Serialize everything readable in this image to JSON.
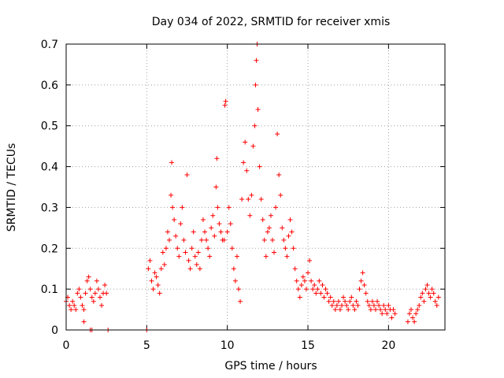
{
  "chart_data": {
    "type": "scatter",
    "title": "Day 034 of 2022, SRMTID for receiver xmis",
    "xlabel": "GPS time / hours",
    "ylabel": "SRMTID / TECUs",
    "xlim": [
      0,
      23.5
    ],
    "ylim": [
      0,
      0.7
    ],
    "xticks": [
      0,
      5,
      10,
      15,
      20
    ],
    "xtick_labels": [
      "0",
      "5",
      "10",
      "15",
      "20"
    ],
    "yticks": [
      0,
      0.1,
      0.2,
      0.3,
      0.4,
      0.5,
      0.6,
      0.7
    ],
    "ytick_labels": [
      "0",
      "0.1",
      "0.2",
      "0.3",
      "0.4",
      "0.5",
      "0.6",
      "0.7"
    ],
    "grid": true,
    "marker": "+",
    "color": "#ff0000",
    "series": [
      {
        "name": "SRMTID",
        "points": [
          [
            0.0,
            0.07
          ],
          [
            0.1,
            0.08
          ],
          [
            0.2,
            0.06
          ],
          [
            0.3,
            0.05
          ],
          [
            0.4,
            0.07
          ],
          [
            0.5,
            0.06
          ],
          [
            0.6,
            0.05
          ],
          [
            0.7,
            0.09
          ],
          [
            0.8,
            0.1
          ],
          [
            0.9,
            0.08
          ],
          [
            1.0,
            0.06
          ],
          [
            1.1,
            0.05
          ],
          [
            1.2,
            0.09
          ],
          [
            1.3,
            0.12
          ],
          [
            1.4,
            0.13
          ],
          [
            1.5,
            0.1
          ],
          [
            1.6,
            0.08
          ],
          [
            1.7,
            0.07
          ],
          [
            1.8,
            0.09
          ],
          [
            1.9,
            0.12
          ],
          [
            2.0,
            0.1
          ],
          [
            2.1,
            0.08
          ],
          [
            2.2,
            0.06
          ],
          [
            2.3,
            0.09
          ],
          [
            2.4,
            0.11
          ],
          [
            2.5,
            0.09
          ],
          [
            1.1,
            0.02
          ],
          [
            1.5,
            0.0
          ],
          [
            1.6,
            0.0
          ],
          [
            2.6,
            0.0
          ],
          [
            5.0,
            0.0
          ],
          [
            5.1,
            0.15
          ],
          [
            5.2,
            0.17
          ],
          [
            5.3,
            0.12
          ],
          [
            5.4,
            0.1
          ],
          [
            5.5,
            0.14
          ],
          [
            5.6,
            0.13
          ],
          [
            5.7,
            0.11
          ],
          [
            5.8,
            0.09
          ],
          [
            5.9,
            0.15
          ],
          [
            6.0,
            0.19
          ],
          [
            6.1,
            0.16
          ],
          [
            6.2,
            0.2
          ],
          [
            6.3,
            0.24
          ],
          [
            6.4,
            0.22
          ],
          [
            6.5,
            0.33
          ],
          [
            6.55,
            0.41
          ],
          [
            6.6,
            0.3
          ],
          [
            6.7,
            0.27
          ],
          [
            6.8,
            0.23
          ],
          [
            6.9,
            0.2
          ],
          [
            7.0,
            0.18
          ],
          [
            7.1,
            0.26
          ],
          [
            7.2,
            0.3
          ],
          [
            7.3,
            0.22
          ],
          [
            7.4,
            0.19
          ],
          [
            7.5,
            0.38
          ],
          [
            7.6,
            0.17
          ],
          [
            7.7,
            0.15
          ],
          [
            7.8,
            0.2
          ],
          [
            7.9,
            0.24
          ],
          [
            8.0,
            0.18
          ],
          [
            8.1,
            0.16
          ],
          [
            8.2,
            0.19
          ],
          [
            8.3,
            0.15
          ],
          [
            8.4,
            0.22
          ],
          [
            8.5,
            0.27
          ],
          [
            8.6,
            0.24
          ],
          [
            8.7,
            0.22
          ],
          [
            8.8,
            0.2
          ],
          [
            8.9,
            0.18
          ],
          [
            9.0,
            0.25
          ],
          [
            9.1,
            0.28
          ],
          [
            9.2,
            0.23
          ],
          [
            9.3,
            0.35
          ],
          [
            9.35,
            0.42
          ],
          [
            9.4,
            0.3
          ],
          [
            9.5,
            0.26
          ],
          [
            9.6,
            0.24
          ],
          [
            9.7,
            0.22
          ],
          [
            9.8,
            0.22
          ],
          [
            9.85,
            0.55
          ],
          [
            9.9,
            0.56
          ],
          [
            10.0,
            0.24
          ],
          [
            10.1,
            0.3
          ],
          [
            10.2,
            0.26
          ],
          [
            10.3,
            0.2
          ],
          [
            10.4,
            0.15
          ],
          [
            10.5,
            0.12
          ],
          [
            10.6,
            0.18
          ],
          [
            10.7,
            0.1
          ],
          [
            10.8,
            0.07
          ],
          [
            10.9,
            0.32
          ],
          [
            11.0,
            0.41
          ],
          [
            11.1,
            0.46
          ],
          [
            11.2,
            0.39
          ],
          [
            11.3,
            0.32
          ],
          [
            11.4,
            0.28
          ],
          [
            11.5,
            0.33
          ],
          [
            11.6,
            0.45
          ],
          [
            11.7,
            0.5
          ],
          [
            11.75,
            0.6
          ],
          [
            11.8,
            0.66
          ],
          [
            11.85,
            0.7
          ],
          [
            11.9,
            0.54
          ],
          [
            12.0,
            0.4
          ],
          [
            12.1,
            0.32
          ],
          [
            12.2,
            0.27
          ],
          [
            12.3,
            0.22
          ],
          [
            12.4,
            0.18
          ],
          [
            12.5,
            0.24
          ],
          [
            12.6,
            0.25
          ],
          [
            12.7,
            0.28
          ],
          [
            12.8,
            0.22
          ],
          [
            12.9,
            0.19
          ],
          [
            13.0,
            0.3
          ],
          [
            13.1,
            0.48
          ],
          [
            13.2,
            0.38
          ],
          [
            13.3,
            0.33
          ],
          [
            13.4,
            0.25
          ],
          [
            13.5,
            0.22
          ],
          [
            13.6,
            0.2
          ],
          [
            13.7,
            0.18
          ],
          [
            13.8,
            0.23
          ],
          [
            13.9,
            0.27
          ],
          [
            14.0,
            0.24
          ],
          [
            14.1,
            0.2
          ],
          [
            14.2,
            0.15
          ],
          [
            14.3,
            0.12
          ],
          [
            14.4,
            0.1
          ],
          [
            14.5,
            0.08
          ],
          [
            14.6,
            0.11
          ],
          [
            14.7,
            0.13
          ],
          [
            14.8,
            0.12
          ],
          [
            14.9,
            0.1
          ],
          [
            15.0,
            0.14
          ],
          [
            15.1,
            0.17
          ],
          [
            15.2,
            0.12
          ],
          [
            15.3,
            0.1
          ],
          [
            15.4,
            0.11
          ],
          [
            15.5,
            0.09
          ],
          [
            15.6,
            0.1
          ],
          [
            15.7,
            0.12
          ],
          [
            15.8,
            0.09
          ],
          [
            15.9,
            0.11
          ],
          [
            16.0,
            0.08
          ],
          [
            16.1,
            0.1
          ],
          [
            16.2,
            0.09
          ],
          [
            16.3,
            0.07
          ],
          [
            16.4,
            0.08
          ],
          [
            16.5,
            0.06
          ],
          [
            16.6,
            0.07
          ],
          [
            16.7,
            0.05
          ],
          [
            16.8,
            0.06
          ],
          [
            16.9,
            0.07
          ],
          [
            17.0,
            0.05
          ],
          [
            17.1,
            0.06
          ],
          [
            17.2,
            0.08
          ],
          [
            17.3,
            0.07
          ],
          [
            17.4,
            0.06
          ],
          [
            17.5,
            0.05
          ],
          [
            17.6,
            0.07
          ],
          [
            17.7,
            0.08
          ],
          [
            17.8,
            0.06
          ],
          [
            17.9,
            0.05
          ],
          [
            18.0,
            0.07
          ],
          [
            18.1,
            0.06
          ],
          [
            18.2,
            0.1
          ],
          [
            18.3,
            0.12
          ],
          [
            18.4,
            0.14
          ],
          [
            18.5,
            0.11
          ],
          [
            18.6,
            0.09
          ],
          [
            18.7,
            0.07
          ],
          [
            18.8,
            0.06
          ],
          [
            18.9,
            0.05
          ],
          [
            19.0,
            0.07
          ],
          [
            19.1,
            0.06
          ],
          [
            19.2,
            0.05
          ],
          [
            19.3,
            0.07
          ],
          [
            19.4,
            0.06
          ],
          [
            19.5,
            0.05
          ],
          [
            19.6,
            0.04
          ],
          [
            19.7,
            0.06
          ],
          [
            19.8,
            0.05
          ],
          [
            19.9,
            0.04
          ],
          [
            20.0,
            0.06
          ],
          [
            20.1,
            0.05
          ],
          [
            20.2,
            0.03
          ],
          [
            20.3,
            0.05
          ],
          [
            20.4,
            0.04
          ],
          [
            21.2,
            0.02
          ],
          [
            21.3,
            0.04
          ],
          [
            21.4,
            0.05
          ],
          [
            21.5,
            0.03
          ],
          [
            21.6,
            0.02
          ],
          [
            21.7,
            0.04
          ],
          [
            21.8,
            0.05
          ],
          [
            21.9,
            0.06
          ],
          [
            22.0,
            0.08
          ],
          [
            22.1,
            0.09
          ],
          [
            22.2,
            0.07
          ],
          [
            22.3,
            0.1
          ],
          [
            22.4,
            0.11
          ],
          [
            22.5,
            0.09
          ],
          [
            22.6,
            0.08
          ],
          [
            22.7,
            0.1
          ],
          [
            22.8,
            0.09
          ],
          [
            22.9,
            0.07
          ],
          [
            23.0,
            0.06
          ],
          [
            23.1,
            0.08
          ]
        ]
      }
    ]
  }
}
